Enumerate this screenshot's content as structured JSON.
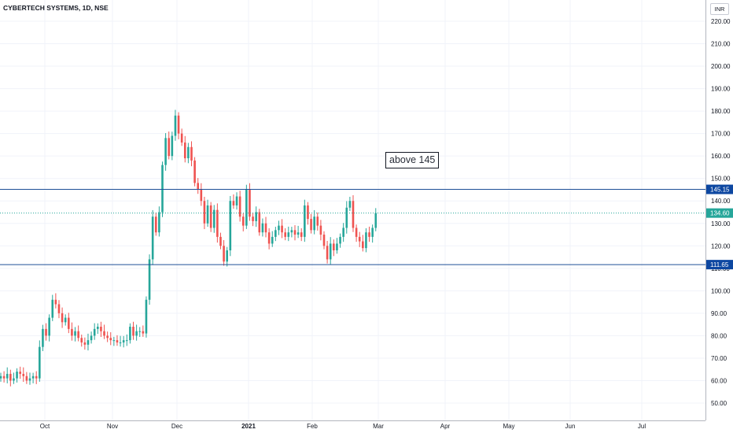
{
  "header": {
    "symbol_title": "CYBERTECH SYSTEMS, 1D, NSE",
    "currency": "INR"
  },
  "annotation": {
    "text": "above 145"
  },
  "colors": {
    "up": "#26a69a",
    "down": "#ef5350",
    "level_line": "#1e4f96",
    "level_badge": "#0d47a1",
    "current_badge": "#26a69a",
    "grid": "#f0f3fa"
  },
  "chart_data": {
    "type": "candlestick",
    "title": "CYBERTECH SYSTEMS, 1D, NSE",
    "ylim": [
      45,
      228
    ],
    "y_ticks": [
      "50.00",
      "60.00",
      "70.00",
      "80.00",
      "90.00",
      "100.00",
      "110.00",
      "120.00",
      "130.00",
      "140.00",
      "150.00",
      "160.00",
      "170.00",
      "180.00",
      "190.00",
      "200.00",
      "210.00",
      "220.00"
    ],
    "x_ticks": [
      "Oct",
      "Nov",
      "Dec",
      "2021",
      "Feb",
      "Mar",
      "Apr",
      "May",
      "Jun",
      "Jul"
    ],
    "horizontal_levels": [
      {
        "value": 145.15,
        "label": "145.15"
      },
      {
        "value": 111.65,
        "label": "111.65"
      }
    ],
    "current_price": {
      "value": 134.6,
      "label": "134.60"
    },
    "closes": [
      62,
      61,
      63,
      60,
      61,
      64,
      63,
      62,
      60,
      61,
      62,
      61,
      75,
      83,
      80,
      88,
      96,
      94,
      90,
      86,
      88,
      83,
      80,
      82,
      79,
      77,
      76,
      78,
      80,
      83,
      84,
      82,
      80,
      79,
      78,
      78,
      77,
      77,
      78,
      78,
      84,
      80,
      82,
      82,
      81,
      96,
      114,
      133,
      126,
      135,
      156,
      168,
      160,
      169,
      178,
      170,
      166,
      159,
      164,
      158,
      148,
      145,
      140,
      130,
      138,
      128,
      136,
      124,
      120,
      113,
      118,
      140,
      138,
      142,
      133,
      129,
      145,
      133,
      131,
      135,
      126,
      130,
      126,
      121,
      124,
      127,
      129,
      126,
      124,
      126,
      127,
      125,
      126,
      124,
      138,
      132,
      127,
      133,
      129,
      125,
      120,
      114,
      121,
      118,
      121,
      124,
      128,
      137,
      140,
      128,
      124,
      122,
      119,
      126,
      124,
      128,
      134.6
    ]
  }
}
